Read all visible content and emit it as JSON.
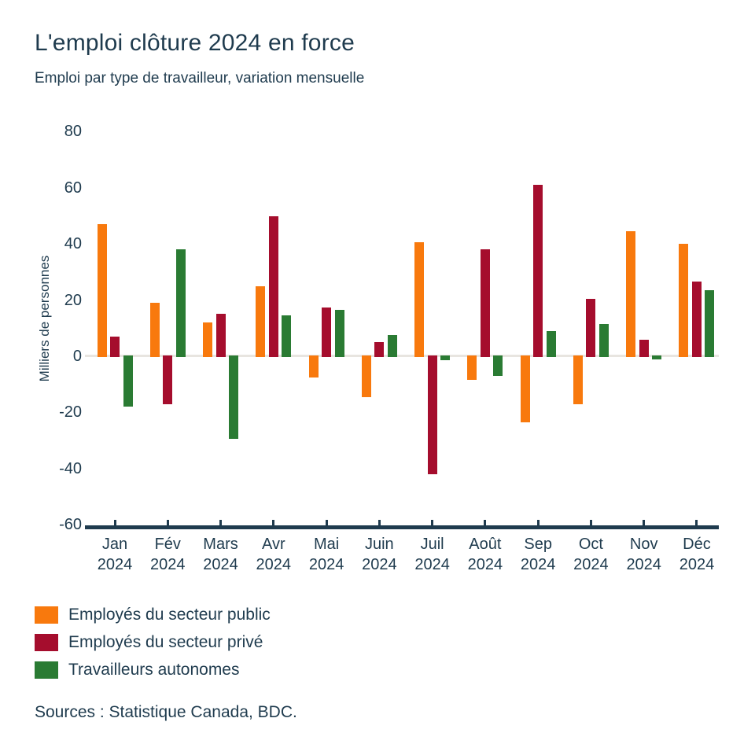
{
  "header": {
    "title": "L'emploi clôture 2024 en force",
    "subtitle": "Emploi par type de travailleur, variation mensuelle"
  },
  "chart_data": {
    "type": "bar",
    "title": "L'emploi clôture 2024 en force",
    "subtitle": "Emploi par type de travailleur, variation mensuelle",
    "xlabel": "",
    "ylabel": "Milliers de personnes",
    "ylim": [
      -60,
      80
    ],
    "yticks": [
      80,
      60,
      40,
      20,
      0,
      -20,
      -40,
      -60
    ],
    "grid": "zero-line-only",
    "legend_position": "bottom-left",
    "categories": [
      "Jan",
      "Fév",
      "Mars",
      "Avr",
      "Mai",
      "Juin",
      "Juil",
      "Août",
      "Sep",
      "Oct",
      "Nov",
      "Déc"
    ],
    "category_year": "2024",
    "series": [
      {
        "name": "Employés du secteur public",
        "color": "#F8790D",
        "values": [
          47,
          19,
          12,
          25,
          -7.5,
          -14.5,
          40.5,
          -8.5,
          -23.5,
          -17,
          44.5,
          40
        ]
      },
      {
        "name": "Employés du secteur privé",
        "color": "#A50D2D",
        "values": [
          7,
          -17,
          15,
          50,
          17.5,
          5,
          -42,
          38,
          61,
          20.5,
          6,
          26.5
        ]
      },
      {
        "name": "Travailleurs autonomes",
        "color": "#2A7B33",
        "values": [
          -18,
          38,
          -29.5,
          14.5,
          16.5,
          7.5,
          -1.5,
          -7,
          9,
          11.5,
          -1,
          23.5
        ]
      }
    ],
    "source": "Sources : Statistique Canada, BDC."
  },
  "footer": {
    "source": "Sources : Statistique Canada, BDC."
  },
  "colors": {
    "secteur_public": "#F8790D",
    "secteur_prive": "#A50D2D",
    "travailleurs_autonomes": "#2A7B33",
    "text": "#1F3B4E",
    "axis": "#1F3B4E",
    "zero_line": "#E8E5E0",
    "background": "#FFFFFF"
  }
}
